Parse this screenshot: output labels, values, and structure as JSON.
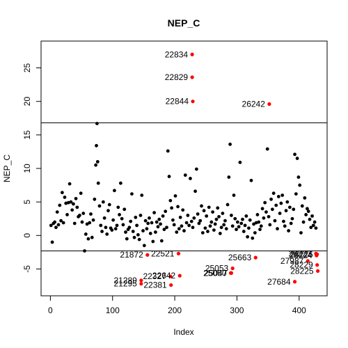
{
  "chart_data": {
    "type": "scatter",
    "title": "NEP_C",
    "xlabel": "Index",
    "ylabel": "NEP_C",
    "xlim": [
      -15,
      445
    ],
    "ylim": [
      -9.0,
      29.0
    ],
    "x_ticks": [
      0,
      100,
      200,
      300,
      400
    ],
    "y_ticks": [
      -5,
      0,
      5,
      10,
      15,
      20,
      25
    ],
    "grid": false,
    "hlines": [
      16.8,
      -2.3
    ],
    "colors": {
      "normal": "#000000",
      "outlier": "#ff0000"
    },
    "normal_points": [
      [
        1,
        1.5
      ],
      [
        3,
        -1.0
      ],
      [
        5,
        1.8
      ],
      [
        7,
        2.0
      ],
      [
        9,
        1.2
      ],
      [
        11,
        3.5
      ],
      [
        13,
        1.6
      ],
      [
        15,
        4.5
      ],
      [
        17,
        2.2
      ],
      [
        19,
        6.4
      ],
      [
        21,
        1.9
      ],
      [
        23,
        5.7
      ],
      [
        25,
        4.8
      ],
      [
        27,
        3.1
      ],
      [
        29,
        4.9
      ],
      [
        31,
        7.7
      ],
      [
        33,
        5.0
      ],
      [
        35,
        3.8
      ],
      [
        37,
        4.7
      ],
      [
        39,
        1.8
      ],
      [
        41,
        5.5
      ],
      [
        43,
        4.2
      ],
      [
        45,
        2.8
      ],
      [
        47,
        3.0
      ],
      [
        49,
        6.3
      ],
      [
        51,
        2.0
      ],
      [
        53,
        3.3
      ],
      [
        55,
        -2.3
      ],
      [
        57,
        0.2
      ],
      [
        59,
        1.7
      ],
      [
        61,
        -0.5
      ],
      [
        63,
        1.9
      ],
      [
        65,
        3.2
      ],
      [
        67,
        -0.3
      ],
      [
        69,
        2.3
      ],
      [
        71,
        5.4
      ],
      [
        73,
        10.5
      ],
      [
        74,
        13.4
      ],
      [
        75,
        16.7
      ],
      [
        76,
        11.0
      ],
      [
        77,
        7.8
      ],
      [
        79,
        4.4
      ],
      [
        81,
        1.5
      ],
      [
        83,
        0.6
      ],
      [
        85,
        5.0
      ],
      [
        87,
        2.6
      ],
      [
        89,
        1.2
      ],
      [
        91,
        0.2
      ],
      [
        93,
        3.7
      ],
      [
        95,
        4.6
      ],
      [
        97,
        1.1
      ],
      [
        99,
        0.8
      ],
      [
        101,
        2.3
      ],
      [
        103,
        6.7
      ],
      [
        105,
        1.0
      ],
      [
        107,
        1.5
      ],
      [
        109,
        4.2
      ],
      [
        111,
        3.1
      ],
      [
        113,
        7.8
      ],
      [
        115,
        2.5
      ],
      [
        117,
        1.6
      ],
      [
        119,
        3.9
      ],
      [
        121,
        0.5
      ],
      [
        123,
        -0.5
      ],
      [
        125,
        0.9
      ],
      [
        127,
        1.2
      ],
      [
        129,
        2.1
      ],
      [
        131,
        6.2
      ],
      [
        133,
        0.6
      ],
      [
        135,
        -0.3
      ],
      [
        137,
        2.7
      ],
      [
        139,
        1.5
      ],
      [
        141,
        0.1
      ],
      [
        143,
        -0.6
      ],
      [
        145,
        3.0
      ],
      [
        147,
        6.0
      ],
      [
        149,
        0.7
      ],
      [
        151,
        -1.5
      ],
      [
        153,
        2.2
      ],
      [
        155,
        1.0
      ],
      [
        157,
        1.8
      ],
      [
        159,
        2.6
      ],
      [
        161,
        0.3
      ],
      [
        163,
        1.9
      ],
      [
        165,
        -0.9
      ],
      [
        167,
        3.4
      ],
      [
        169,
        0.5
      ],
      [
        171,
        2.0
      ],
      [
        173,
        1.3
      ],
      [
        175,
        2.4
      ],
      [
        177,
        1.7
      ],
      [
        179,
        -0.8
      ],
      [
        181,
        2.9
      ],
      [
        183,
        0.9
      ],
      [
        185,
        3.6
      ],
      [
        187,
        1.2
      ],
      [
        189,
        12.6
      ],
      [
        191,
        8.8
      ],
      [
        193,
        5.2
      ],
      [
        195,
        4.1
      ],
      [
        197,
        2.3
      ],
      [
        199,
        1.6
      ],
      [
        201,
        5.9
      ],
      [
        203,
        0.5
      ],
      [
        205,
        4.3
      ],
      [
        207,
        1.0
      ],
      [
        209,
        2.7
      ],
      [
        211,
        1.4
      ],
      [
        213,
        3.8
      ],
      [
        215,
        0.7
      ],
      [
        217,
        9.0
      ],
      [
        219,
        1.9
      ],
      [
        221,
        3.0
      ],
      [
        223,
        1.5
      ],
      [
        225,
        8.5
      ],
      [
        227,
        2.1
      ],
      [
        229,
        1.2
      ],
      [
        231,
        2.6
      ],
      [
        233,
        6.6
      ],
      [
        235,
        9.9
      ],
      [
        237,
        3.2
      ],
      [
        239,
        1.8
      ],
      [
        241,
        2.2
      ],
      [
        243,
        4.4
      ],
      [
        245,
        0.4
      ],
      [
        247,
        3.7
      ],
      [
        249,
        1.1
      ],
      [
        251,
        2.9
      ],
      [
        253,
        0.6
      ],
      [
        255,
        4.2
      ],
      [
        257,
        1.4
      ],
      [
        259,
        2.0
      ],
      [
        261,
        3.5
      ],
      [
        263,
        0.8
      ],
      [
        265,
        1.7
      ],
      [
        267,
        2.4
      ],
      [
        269,
        4.1
      ],
      [
        271,
        2.8
      ],
      [
        273,
        0.3
      ],
      [
        275,
        1.2
      ],
      [
        277,
        3.3
      ],
      [
        279,
        1.6
      ],
      [
        281,
        2.2
      ],
      [
        283,
        1.0
      ],
      [
        285,
        4.6
      ],
      [
        287,
        8.7
      ],
      [
        289,
        13.6
      ],
      [
        291,
        3.0
      ],
      [
        293,
        1.4
      ],
      [
        295,
        6.0
      ],
      [
        297,
        2.5
      ],
      [
        299,
        0.9
      ],
      [
        301,
        2.0
      ],
      [
        303,
        1.3
      ],
      [
        305,
        10.9
      ],
      [
        307,
        1.8
      ],
      [
        309,
        2.4
      ],
      [
        311,
        0.6
      ],
      [
        313,
        1.5
      ],
      [
        315,
        2.9
      ],
      [
        317,
        -0.2
      ],
      [
        319,
        1.1
      ],
      [
        321,
        2.3
      ],
      [
        323,
        8.2
      ],
      [
        325,
        -0.4
      ],
      [
        327,
        1.7
      ],
      [
        329,
        0.4
      ],
      [
        331,
        1.9
      ],
      [
        333,
        3.1
      ],
      [
        335,
        2.0
      ],
      [
        337,
        0.9
      ],
      [
        339,
        1.4
      ],
      [
        341,
        4.0
      ],
      [
        343,
        2.6
      ],
      [
        345,
        4.9
      ],
      [
        347,
        3.5
      ],
      [
        349,
        12.9
      ],
      [
        351,
        2.8
      ],
      [
        353,
        1.6
      ],
      [
        355,
        5.4
      ],
      [
        357,
        3.9
      ],
      [
        359,
        6.3
      ],
      [
        361,
        2.2
      ],
      [
        363,
        4.5
      ],
      [
        365,
        1.0
      ],
      [
        367,
        5.8
      ],
      [
        369,
        3.3
      ],
      [
        371,
        4.8
      ],
      [
        373,
        6.0
      ],
      [
        375,
        2.1
      ],
      [
        377,
        1.4
      ],
      [
        379,
        3.7
      ],
      [
        381,
        5.0
      ],
      [
        383,
        0.7
      ],
      [
        385,
        4.2
      ],
      [
        387,
        1.8
      ],
      [
        389,
        2.5
      ],
      [
        391,
        3.9
      ],
      [
        393,
        12.1
      ],
      [
        395,
        6.2
      ],
      [
        397,
        11.5
      ],
      [
        399,
        8.7
      ],
      [
        401,
        7.5
      ],
      [
        403,
        0.4
      ],
      [
        405,
        4.4
      ],
      [
        407,
        2.0
      ],
      [
        409,
        5.6
      ],
      [
        411,
        3.1
      ],
      [
        413,
        4.0
      ],
      [
        415,
        3.6
      ],
      [
        417,
        2.4
      ],
      [
        419,
        1.2
      ],
      [
        421,
        2.9
      ],
      [
        423,
        1.5
      ],
      [
        425,
        2.0
      ],
      [
        427,
        1.1
      ]
    ],
    "outliers": [
      {
        "x": 228,
        "y": 27.0,
        "label": "22834",
        "label_side": "left"
      },
      {
        "x": 228,
        "y": 23.6,
        "label": "22829",
        "label_side": "left"
      },
      {
        "x": 229,
        "y": 20.0,
        "label": "22844",
        "label_side": "left"
      },
      {
        "x": 352,
        "y": 19.6,
        "label": "26242",
        "label_side": "left"
      },
      {
        "x": 156,
        "y": -2.9,
        "label": "21872",
        "label_side": "left"
      },
      {
        "x": 206,
        "y": -2.7,
        "label": "22521",
        "label_side": "left"
      },
      {
        "x": 330,
        "y": -3.3,
        "label": "25663",
        "label_side": "left"
      },
      {
        "x": 293,
        "y": -4.9,
        "label": "25053",
        "label_side": "left"
      },
      {
        "x": 290,
        "y": -5.6,
        "label": "25050",
        "label_side": "left"
      },
      {
        "x": 291,
        "y": -5.6,
        "label": "25047",
        "label_side": "left"
      },
      {
        "x": 208,
        "y": -6.0,
        "label": "22642",
        "label_side": "left"
      },
      {
        "x": 193,
        "y": -6.1,
        "label": "22327",
        "label_side": "left"
      },
      {
        "x": 146,
        "y": -6.7,
        "label": "21289",
        "label_side": "left"
      },
      {
        "x": 146,
        "y": -7.2,
        "label": "21295",
        "label_side": "left"
      },
      {
        "x": 194,
        "y": -7.4,
        "label": "22381",
        "label_side": "left"
      },
      {
        "x": 393,
        "y": -6.9,
        "label": "27684",
        "label_side": "left"
      },
      {
        "x": 427,
        "y": -2.7,
        "label": "28223",
        "label_side": "left"
      },
      {
        "x": 428,
        "y": -3.0,
        "label": "28224",
        "label_side": "left"
      },
      {
        "x": 429,
        "y": -2.8,
        "label": "28226",
        "label_side": "left"
      },
      {
        "x": 414,
        "y": -3.8,
        "label": "27987",
        "label_side": "left"
      },
      {
        "x": 429,
        "y": -4.4,
        "label": "28229",
        "label_side": "left"
      },
      {
        "x": 430,
        "y": -5.3,
        "label": "28225",
        "label_side": "left"
      }
    ]
  }
}
